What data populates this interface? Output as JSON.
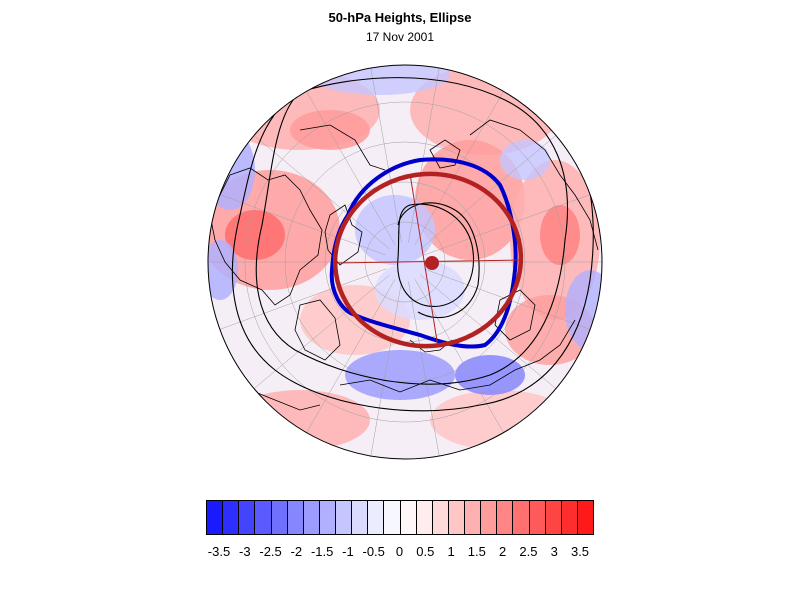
{
  "figure": {
    "title": "50-hPa Heights, Ellipse",
    "date": "17 Nov 2001"
  },
  "colors": {
    "ellipse": "#b22222",
    "vortex_edge": "#0000cc",
    "contour": "#000000",
    "coast": "#000000",
    "graticule": "#a0a0a0"
  },
  "colorbar": {
    "labels": [
      "-3.5",
      "-3",
      "-2.5",
      "-2",
      "-1.5",
      "-1",
      "-0.5",
      "0",
      "0.5",
      "1",
      "1.5",
      "2",
      "2.5",
      "3",
      "3.5"
    ],
    "colors": [
      "#1a1aff",
      "#2e2eff",
      "#4444ff",
      "#5a5aff",
      "#7070ff",
      "#8686ff",
      "#9c9cff",
      "#b0b0ff",
      "#c6c6ff",
      "#dadaff",
      "#ececff",
      "#f7f7ff",
      "#fff7f7",
      "#ffecec",
      "#ffdada",
      "#ffc6c6",
      "#ffb0b0",
      "#ff9c9c",
      "#ff8686",
      "#ff7070",
      "#ff5a5a",
      "#ff4444",
      "#ff2e2e",
      "#ff1a1a"
    ]
  }
}
